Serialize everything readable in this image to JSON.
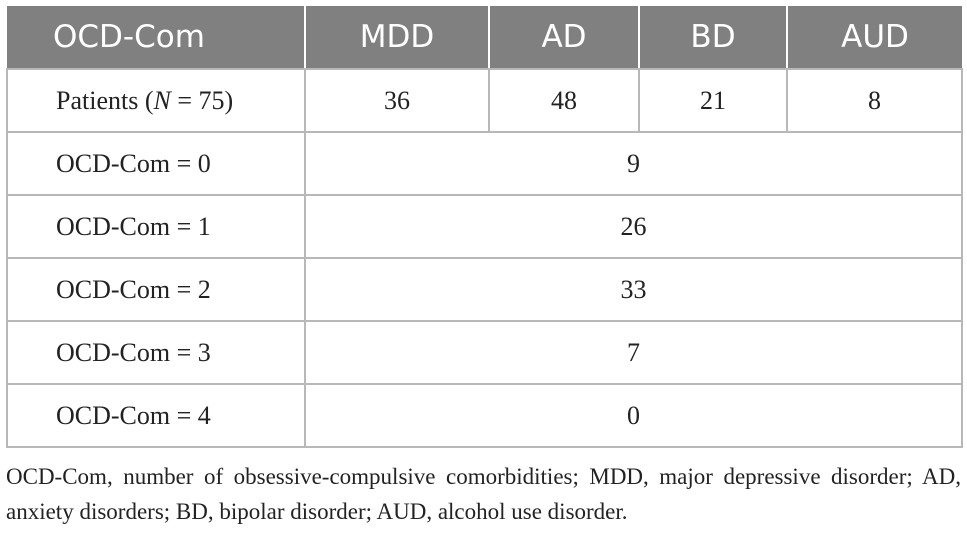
{
  "table": {
    "headers": [
      "OCD-Com",
      "MDD",
      "AD",
      "BD",
      "AUD"
    ],
    "patients_row": {
      "label_prefix": "Patients (",
      "label_var": "N",
      "label_suffix": " = 75)",
      "values": [
        "36",
        "48",
        "21",
        "8"
      ]
    },
    "rows": [
      {
        "label": "OCD-Com = 0",
        "value": "9"
      },
      {
        "label": "OCD-Com = 1",
        "value": "26"
      },
      {
        "label": "OCD-Com = 2",
        "value": "33"
      },
      {
        "label": "OCD-Com = 3",
        "value": "7"
      },
      {
        "label": "OCD-Com = 4",
        "value": "0"
      }
    ]
  },
  "footnote": "OCD-Com, number of obsessive-compulsive comorbidities; MDD, major depressive disorder; AD, anxiety disorders; BD, bipolar disorder; AUD, alcohol use disorder."
}
